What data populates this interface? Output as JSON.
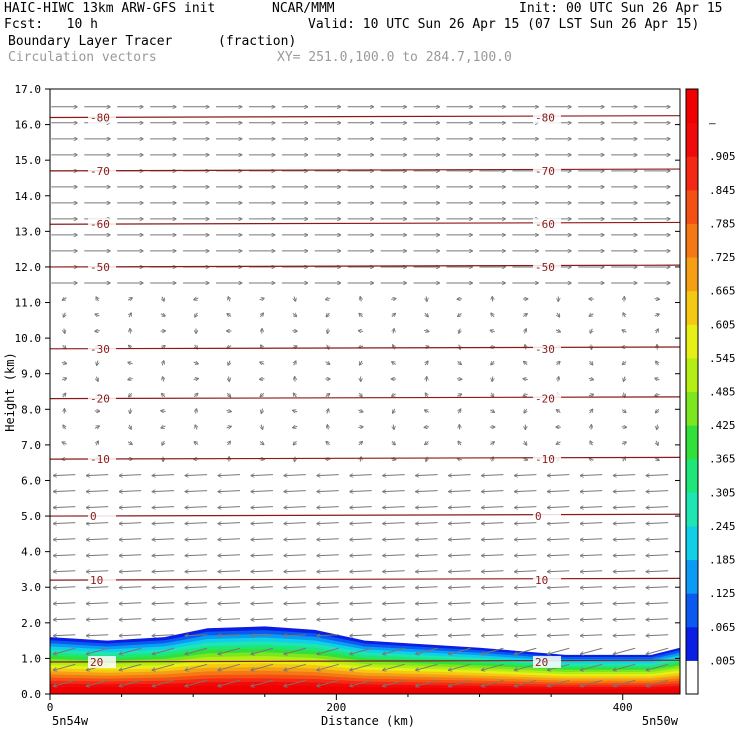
{
  "header": {
    "model": "HAIC-HIWC 13km ARW-GFS init",
    "org": "NCAR/MMM",
    "init": "Init: 00 UTC Sun 26 Apr 15",
    "fcst": "Fcst:   10 h",
    "valid": "Valid: 10 UTC Sun 26 Apr 15 (07 LST Sun 26 Apr 15)",
    "field": "Boundary Layer Tracer",
    "units": "(fraction)",
    "vectors": "Circulation vectors",
    "xy": "XY= 251.0,100.0 to 284.7,100.0"
  },
  "chart_data": {
    "type": "cross-section",
    "xlabel": "Distance (km)",
    "ylabel": "Height (km)",
    "xlim": [
      0,
      440
    ],
    "ylim": [
      0.0,
      17.0
    ],
    "x_ticks": [
      "0",
      "200",
      "400"
    ],
    "x_tick_values": [
      0,
      200,
      400
    ],
    "x_end_labels": [
      "5n54w",
      "5n50w"
    ],
    "y_ticks": [
      "0.0",
      "1.0",
      "2.0",
      "3.0",
      "4.0",
      "5.0",
      "6.0",
      "7.0",
      "8.0",
      "9.0",
      "10.0",
      "11.0",
      "12.0",
      "13.0",
      "14.0",
      "15.0",
      "16.0",
      "17.0"
    ],
    "colorbar": {
      "labels": [
        ".005",
        ".065",
        ".125",
        ".185",
        ".245",
        ".305",
        ".365",
        ".425",
        ".485",
        ".545",
        ".605",
        ".665",
        ".725",
        ".785",
        ".845",
        ".905",
        "–"
      ],
      "colors": [
        "#ffffff",
        "#0a1ee6",
        "#0a5af0",
        "#0a9bf5",
        "#10cfe6",
        "#1de6b4",
        "#1ee678",
        "#32e03c",
        "#7ce61e",
        "#b4ee14",
        "#e6f014",
        "#f5c814",
        "#f5a014",
        "#f57814",
        "#f55014",
        "#f52814",
        "#f00a0a",
        "#f00000"
      ]
    },
    "temperature_contours": [
      {
        "label": "-80",
        "height": 16.2
      },
      {
        "label": "-70",
        "height": 14.7
      },
      {
        "label": "-60",
        "height": 13.2
      },
      {
        "label": "-50",
        "height": 12.0
      },
      {
        "label": "-30",
        "height": 9.7
      },
      {
        "label": "-20",
        "height": 8.3
      },
      {
        "label": "-10",
        "height": 6.6
      },
      {
        "label": "0",
        "height": 5.0
      },
      {
        "label": "10",
        "height": 3.2
      },
      {
        "label": "20",
        "height": 0.9
      }
    ],
    "boundary_layer_top_km": [
      {
        "x": 0,
        "y": 1.6
      },
      {
        "x": 40,
        "y": 1.5
      },
      {
        "x": 80,
        "y": 1.6
      },
      {
        "x": 110,
        "y": 1.85
      },
      {
        "x": 150,
        "y": 1.9
      },
      {
        "x": 185,
        "y": 1.8
      },
      {
        "x": 220,
        "y": 1.5
      },
      {
        "x": 300,
        "y": 1.3
      },
      {
        "x": 360,
        "y": 1.1
      },
      {
        "x": 420,
        "y": 1.1
      },
      {
        "x": 440,
        "y": 1.3
      }
    ],
    "wind_direction_by_layer": [
      {
        "from_km": 0.0,
        "to_km": 6.5,
        "direction": "westward"
      },
      {
        "from_km": 6.5,
        "to_km": 11.5,
        "direction": "weak/variable"
      },
      {
        "from_km": 11.5,
        "to_km": 17.0,
        "direction": "eastward"
      }
    ]
  }
}
